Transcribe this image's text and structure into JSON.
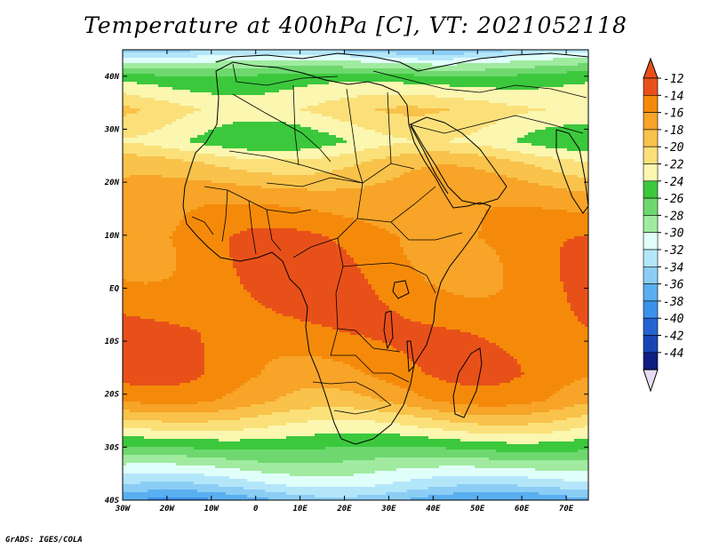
{
  "title": "Temperature at 400hPa [C], VT: 2021052118",
  "credit": "GrADS: IGES/COLA",
  "map": {
    "lon_range": [
      -30,
      75
    ],
    "lat_range": [
      -40,
      45
    ],
    "lon_ticks": [
      {
        "value": -30,
        "label": "30W"
      },
      {
        "value": -20,
        "label": "20W"
      },
      {
        "value": -10,
        "label": "10W"
      },
      {
        "value": 0,
        "label": "0"
      },
      {
        "value": 10,
        "label": "10E"
      },
      {
        "value": 20,
        "label": "20E"
      },
      {
        "value": 30,
        "label": "30E"
      },
      {
        "value": 40,
        "label": "40E"
      },
      {
        "value": 50,
        "label": "50E"
      },
      {
        "value": 60,
        "label": "60E"
      },
      {
        "value": 70,
        "label": "70E"
      }
    ],
    "lat_ticks": [
      {
        "value": 40,
        "label": "40N"
      },
      {
        "value": 30,
        "label": "30N"
      },
      {
        "value": 20,
        "label": "20N"
      },
      {
        "value": 10,
        "label": "10N"
      },
      {
        "value": 0,
        "label": "EQ"
      },
      {
        "value": -10,
        "label": "10S"
      },
      {
        "value": -20,
        "label": "20S"
      },
      {
        "value": -30,
        "label": "30S"
      },
      {
        "value": -40,
        "label": "40S"
      }
    ]
  },
  "colorbar": {
    "labels": [
      "-12",
      "-14",
      "-16",
      "-18",
      "-20",
      "-22",
      "-24",
      "-26",
      "-28",
      "-30",
      "-32",
      "-34",
      "-36",
      "-38",
      "-40",
      "-42",
      "-44"
    ],
    "colors": [
      "#e8501a",
      "#f58a0a",
      "#f7a428",
      "#f9c24a",
      "#fbe07a",
      "#fbf7b0",
      "#3cc83c",
      "#6ed86e",
      "#a0eba0",
      "#e0fffa",
      "#b4e6fa",
      "#8ccdf5",
      "#5aaff0",
      "#3c91eb",
      "#2464d2",
      "#1746b4",
      "#0f1e82"
    ],
    "top_color": "#e8501a",
    "bottom_color": "#e6dcf5"
  },
  "bands": [
    {
      "lat": 45,
      "value": -34
    },
    {
      "lat": 43,
      "value": -30
    },
    {
      "lat": 40,
      "value": -25
    },
    {
      "lat": 34,
      "value": -21
    },
    {
      "lat": 28,
      "value": -24
    },
    {
      "lat": 24,
      "value": -20
    },
    {
      "lat": 18,
      "value": -17
    },
    {
      "lat": 10,
      "value": -15
    },
    {
      "lat": 0,
      "value": -14.5
    },
    {
      "lat": -8,
      "value": -14
    },
    {
      "lat": -16,
      "value": -15
    },
    {
      "lat": -21,
      "value": -17
    },
    {
      "lat": -25,
      "value": -21
    },
    {
      "lat": -28,
      "value": -24
    },
    {
      "lat": -31,
      "value": -27
    },
    {
      "lat": -34,
      "value": -30
    },
    {
      "lat": -37,
      "value": -33
    },
    {
      "lat": -40,
      "value": -37
    }
  ]
}
